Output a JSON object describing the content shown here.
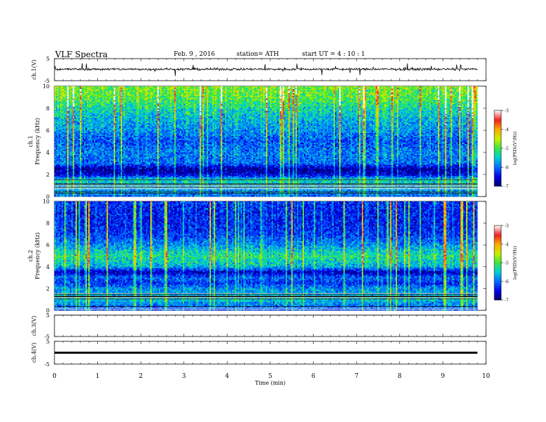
{
  "header": {
    "title": "VLF  Spectra",
    "date": "Feb. 9  , 2016",
    "station": "station= ATH",
    "start": "start  UT  =   4  : 10 : 1"
  },
  "chart_data": [
    {
      "type": "line",
      "panel": "ch1-waveform",
      "ylabel": "ch.1(V)",
      "yticks": [
        "5",
        "-5"
      ],
      "ylim": [
        -5,
        5
      ],
      "baseline": 0.2,
      "xlim": [
        0,
        10
      ],
      "data_end_min": 9.8,
      "color": "#000000"
    },
    {
      "type": "heatmap",
      "panel": "ch1-spectrogram",
      "ylabel": "ch.1",
      "ylabel2": "Frequency  (kHz)",
      "yticks": [
        "10",
        "8",
        "6",
        "4",
        "2",
        "0"
      ],
      "ylim": [
        0,
        10
      ],
      "xlim": [
        0,
        10
      ],
      "data_end_min": 9.8,
      "noise_floor_logPSD_by_freq_kHz": [
        [
          0,
          -6.0
        ],
        [
          0.5,
          -5.8
        ],
        [
          1.0,
          -5.6
        ],
        [
          1.5,
          -5.4
        ],
        [
          2.0,
          -6.6
        ],
        [
          2.5,
          -6.8
        ],
        [
          3.0,
          -6.0
        ],
        [
          4.0,
          -5.9
        ],
        [
          5.0,
          -6.1
        ],
        [
          6.0,
          -5.8
        ],
        [
          7.0,
          -5.6
        ],
        [
          8.0,
          -5.3
        ],
        [
          9.0,
          -4.9
        ],
        [
          10.0,
          -4.8
        ]
      ],
      "colorbar": {
        "label": "log(PSD)(V²/Hz)",
        "ticks": [
          "-3",
          "-4",
          "-5",
          "-6",
          "-7"
        ],
        "range": [
          -7,
          -3
        ]
      }
    },
    {
      "type": "heatmap",
      "panel": "ch2-spectrogram",
      "ylabel": "ch.2",
      "ylabel2": "Frequency  (kHz)",
      "yticks": [
        "10",
        "8",
        "6",
        "4",
        "2",
        "0"
      ],
      "ylim": [
        0,
        10
      ],
      "xlim": [
        0,
        10
      ],
      "data_end_min": 9.8,
      "noise_floor_logPSD_by_freq_kHz": [
        [
          0,
          -6.2
        ],
        [
          0.5,
          -5.9
        ],
        [
          1.0,
          -5.5
        ],
        [
          1.5,
          -5.7
        ],
        [
          2.0,
          -5.8
        ],
        [
          2.5,
          -6.3
        ],
        [
          3.0,
          -6.0
        ],
        [
          3.5,
          -6.7
        ],
        [
          4.0,
          -5.6
        ],
        [
          5.0,
          -5.2
        ],
        [
          6.0,
          -5.8
        ],
        [
          7.0,
          -6.2
        ],
        [
          8.0,
          -6.3
        ],
        [
          9.0,
          -6.3
        ],
        [
          10.0,
          -6.2
        ]
      ],
      "colorbar": {
        "label": "log(PSD)(V²/Hz)",
        "ticks": [
          "-3",
          "-4",
          "-5",
          "-6",
          "-7"
        ],
        "range": [
          -7,
          -3
        ]
      }
    },
    {
      "type": "line",
      "panel": "ch3-waveform",
      "ylabel": "ch.3(V)",
      "yticks": [
        "5",
        "-5"
      ],
      "ylim": [
        -5,
        5
      ],
      "baseline": 5,
      "xlim": [
        0,
        10
      ],
      "data_end_min": 9.8,
      "color": "#000000"
    },
    {
      "type": "line",
      "panel": "ch4-waveform",
      "ylabel": "ch.4(V)",
      "yticks": [
        "5",
        "-5"
      ],
      "ylim": [
        -5,
        5
      ],
      "baseline": 0,
      "xlim": [
        0,
        10
      ],
      "data_end_min": 9.8,
      "color": "#000000"
    }
  ],
  "xaxis": {
    "label": "Time  (min)",
    "ticks": [
      "0",
      "1",
      "2",
      "3",
      "4",
      "5",
      "6",
      "7",
      "8",
      "9",
      "10"
    ],
    "range": [
      0,
      10
    ]
  }
}
